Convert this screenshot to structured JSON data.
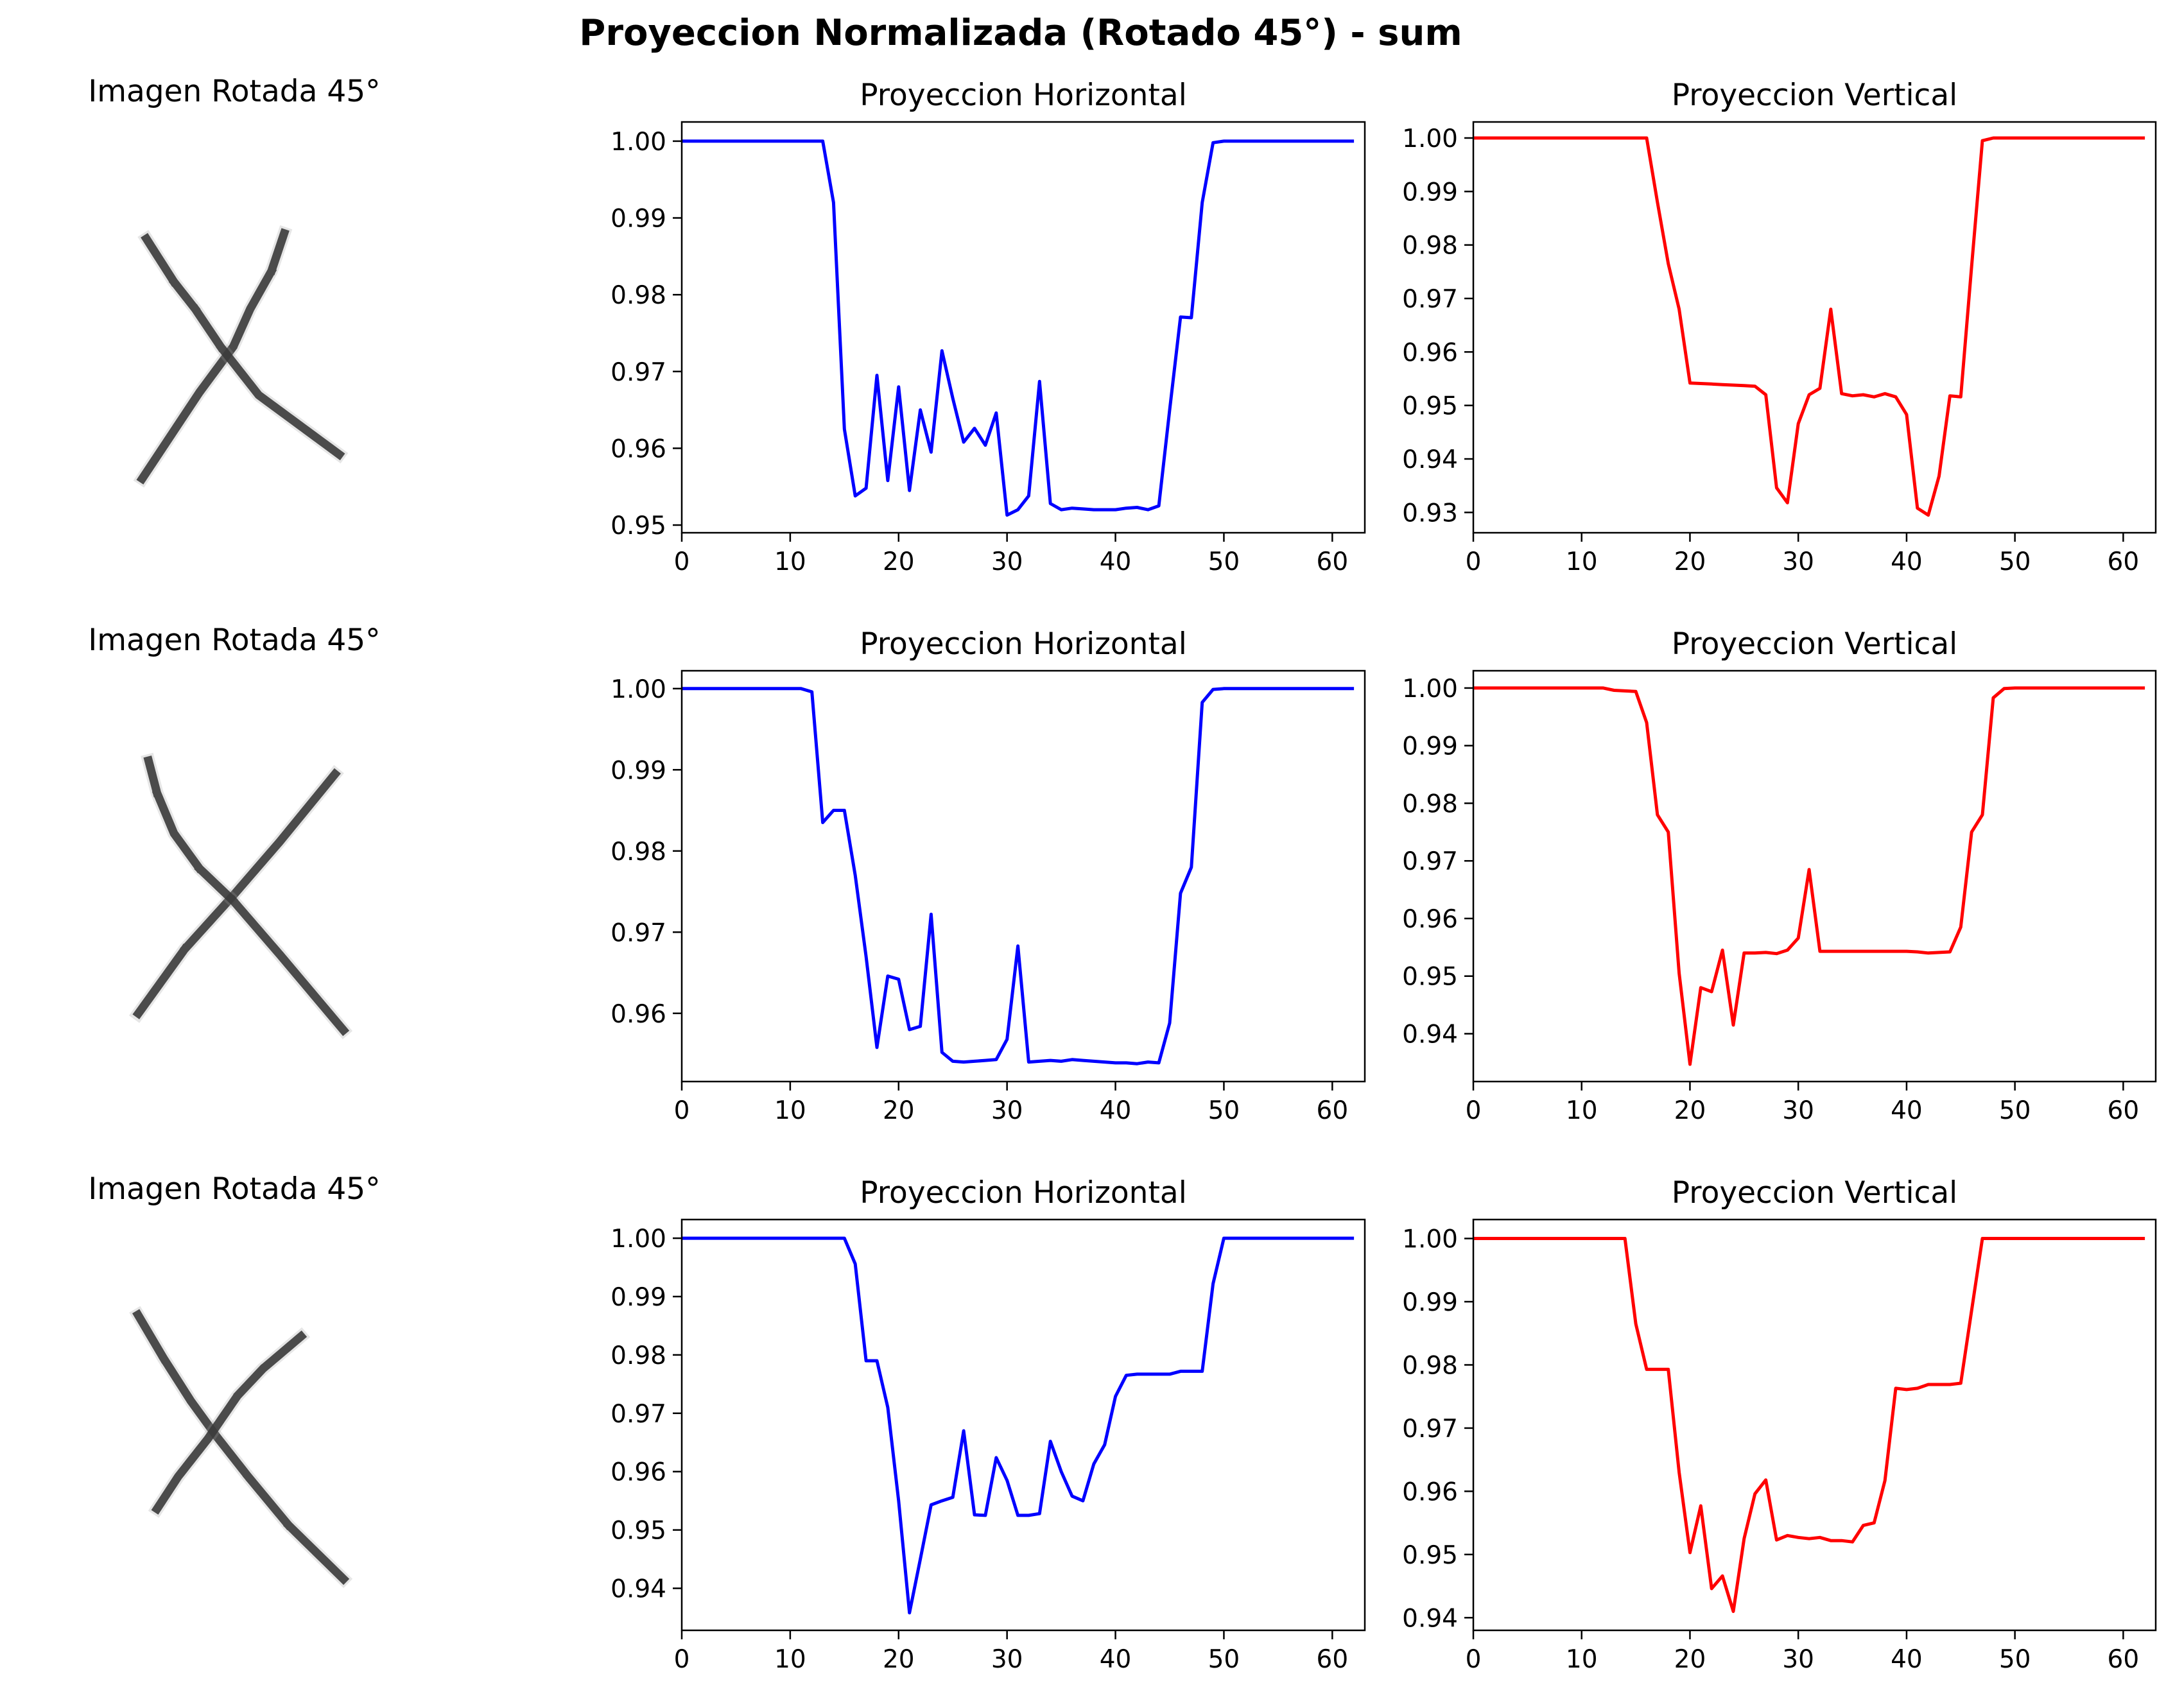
{
  "suptitle": "Proyeccion Normalizada (Rotado 45°) - sum",
  "colors": {
    "horizontal": "#0000ff",
    "vertical": "#ff0000"
  },
  "chart_data": [
    {
      "row": 0,
      "image": {
        "title": "Imagen Rotada 45°",
        "strokes": [
          [
            [
              0.72,
              0.08
            ],
            [
              0.66,
              0.22
            ],
            [
              0.56,
              0.36
            ],
            [
              0.48,
              0.5
            ],
            [
              0.32,
              0.67
            ],
            [
              0.05,
              0.99
            ]
          ],
          [
            [
              0.07,
              0.1
            ],
            [
              0.2,
              0.26
            ],
            [
              0.3,
              0.36
            ],
            [
              0.42,
              0.5
            ],
            [
              0.6,
              0.68
            ],
            [
              0.98,
              0.9
            ]
          ]
        ]
      },
      "charts": [
        {
          "type": "line",
          "title": "Proyeccion Horizontal",
          "color": "#0000ff",
          "xlim": [
            0,
            63
          ],
          "ylim": [
            0.949,
            1.0025
          ],
          "xticks": [
            0,
            10,
            20,
            30,
            40,
            50,
            60
          ],
          "yticks": [
            0.95,
            0.96,
            0.97,
            0.98,
            0.99,
            1.0
          ],
          "y": [
            1,
            1,
            1,
            1,
            1,
            1,
            1,
            1,
            1,
            1,
            1,
            1,
            1,
            1,
            0.992,
            0.9625,
            0.9538,
            0.9548,
            0.9695,
            0.9558,
            0.968,
            0.9545,
            0.965,
            0.9595,
            0.9727,
            0.9665,
            0.9608,
            0.9626,
            0.9604,
            0.9646,
            0.9513,
            0.952,
            0.9538,
            0.9687,
            0.9528,
            0.952,
            0.9522,
            0.9521,
            0.952,
            0.952,
            0.952,
            0.9522,
            0.9523,
            0.952,
            0.9525,
            0.965,
            0.9771,
            0.977,
            0.992,
            0.9998,
            1,
            1,
            1,
            1,
            1,
            1,
            1,
            1,
            1,
            1,
            1,
            1,
            1
          ]
        },
        {
          "type": "line",
          "title": "Proyeccion Vertical",
          "color": "#ff0000",
          "xlim": [
            0,
            63
          ],
          "ylim": [
            0.9262,
            1.003
          ],
          "xticks": [
            0,
            10,
            20,
            30,
            40,
            50,
            60
          ],
          "yticks": [
            0.93,
            0.94,
            0.95,
            0.96,
            0.97,
            0.98,
            0.99,
            1.0
          ],
          "y": [
            1,
            1,
            1,
            1,
            1,
            1,
            1,
            1,
            1,
            1,
            1,
            1,
            1,
            1,
            1,
            1,
            1,
            0.988,
            0.9765,
            0.968,
            0.9542,
            0.9541,
            0.954,
            0.9539,
            0.9538,
            0.9537,
            0.9536,
            0.952,
            0.9346,
            0.9318,
            0.9466,
            0.952,
            0.9532,
            0.968,
            0.9522,
            0.9518,
            0.952,
            0.9516,
            0.9522,
            0.9516,
            0.9483,
            0.9308,
            0.9295,
            0.9368,
            0.9518,
            0.9516,
            0.976,
            0.9995,
            1,
            1,
            1,
            1,
            1,
            1,
            1,
            1,
            1,
            1,
            1,
            1,
            1,
            1,
            1
          ]
        }
      ]
    },
    {
      "row": 1,
      "image": {
        "title": "Imagen Rotada 45°",
        "strokes": [
          [
            [
              0.96,
              0.05
            ],
            [
              0.7,
              0.3
            ],
            [
              0.48,
              0.5
            ],
            [
              0.25,
              0.7
            ],
            [
              0.03,
              0.94
            ]
          ],
          [
            [
              0.08,
              0.0
            ],
            [
              0.12,
              0.12
            ],
            [
              0.2,
              0.27
            ],
            [
              0.32,
              0.4
            ],
            [
              0.48,
              0.52
            ],
            [
              0.7,
              0.72
            ],
            [
              1.0,
              1.0
            ]
          ]
        ]
      },
      "charts": [
        {
          "type": "line",
          "title": "Proyeccion Horizontal",
          "color": "#0000ff",
          "xlim": [
            0,
            63
          ],
          "ylim": [
            0.9516,
            1.0022
          ],
          "xticks": [
            0,
            10,
            20,
            30,
            40,
            50,
            60
          ],
          "yticks": [
            0.96,
            0.97,
            0.98,
            0.99,
            1.0
          ],
          "y": [
            1,
            1,
            1,
            1,
            1,
            1,
            1,
            1,
            1,
            1,
            1,
            1,
            0.9996,
            0.9835,
            0.985,
            0.985,
            0.977,
            0.967,
            0.9558,
            0.9646,
            0.9642,
            0.958,
            0.9584,
            0.9722,
            0.9552,
            0.9541,
            0.954,
            0.9541,
            0.9542,
            0.9543,
            0.9568,
            0.9683,
            0.954,
            0.9541,
            0.9542,
            0.9541,
            0.9543,
            0.9542,
            0.9541,
            0.954,
            0.9539,
            0.9539,
            0.9538,
            0.954,
            0.9539,
            0.9588,
            0.9748,
            0.978,
            0.9983,
            0.9999,
            1,
            1,
            1,
            1,
            1,
            1,
            1,
            1,
            1,
            1,
            1,
            1,
            1
          ]
        },
        {
          "type": "line",
          "title": "Proyeccion Vertical",
          "color": "#ff0000",
          "xlim": [
            0,
            63
          ],
          "ylim": [
            0.9317,
            1.003
          ],
          "xticks": [
            0,
            10,
            20,
            30,
            40,
            50,
            60
          ],
          "yticks": [
            0.94,
            0.95,
            0.96,
            0.97,
            0.98,
            0.99,
            1.0
          ],
          "y": [
            1,
            1,
            1,
            1,
            1,
            1,
            1,
            1,
            1,
            1,
            1,
            1,
            1,
            0.9996,
            0.9995,
            0.9994,
            0.994,
            0.978,
            0.975,
            0.9505,
            0.9347,
            0.948,
            0.9473,
            0.9545,
            0.9415,
            0.954,
            0.954,
            0.9541,
            0.9539,
            0.9545,
            0.9566,
            0.9685,
            0.9543,
            0.9543,
            0.9543,
            0.9543,
            0.9543,
            0.9543,
            0.9543,
            0.9543,
            0.9543,
            0.9542,
            0.954,
            0.9541,
            0.9542,
            0.9585,
            0.975,
            0.978,
            0.9983,
            0.9999,
            1,
            1,
            1,
            1,
            1,
            1,
            1,
            1,
            1,
            1,
            1,
            1,
            1
          ]
        }
      ]
    },
    {
      "row": 2,
      "image": {
        "title": "Imagen Rotada 45°",
        "strokes": [
          [
            [
              0.03,
              0.02
            ],
            [
              0.15,
              0.18
            ],
            [
              0.28,
              0.34
            ],
            [
              0.4,
              0.47
            ],
            [
              0.55,
              0.62
            ],
            [
              0.74,
              0.8
            ],
            [
              1.0,
              1.0
            ]
          ],
          [
            [
              0.8,
              0.1
            ],
            [
              0.62,
              0.22
            ],
            [
              0.5,
              0.32
            ],
            [
              0.36,
              0.48
            ],
            [
              0.22,
              0.62
            ],
            [
              0.12,
              0.74
            ]
          ]
        ]
      },
      "charts": [
        {
          "type": "line",
          "title": "Proyeccion Horizontal",
          "color": "#0000ff",
          "xlim": [
            0,
            63
          ],
          "ylim": [
            0.9328,
            1.0032
          ],
          "xticks": [
            0,
            10,
            20,
            30,
            40,
            50,
            60
          ],
          "yticks": [
            0.94,
            0.95,
            0.96,
            0.97,
            0.98,
            0.99,
            1.0
          ],
          "y": [
            1,
            1,
            1,
            1,
            1,
            1,
            1,
            1,
            1,
            1,
            1,
            1,
            1,
            1,
            1,
            1,
            0.9956,
            0.979,
            0.979,
            0.971,
            0.955,
            0.9358,
            0.945,
            0.9543,
            0.955,
            0.9556,
            0.967,
            0.9526,
            0.9525,
            0.9624,
            0.9585,
            0.9525,
            0.9525,
            0.9528,
            0.9652,
            0.96,
            0.9558,
            0.955,
            0.9613,
            0.9646,
            0.9729,
            0.9765,
            0.9767,
            0.9767,
            0.9767,
            0.9767,
            0.9772,
            0.9772,
            0.9772,
            0.9922,
            1,
            1,
            1,
            1,
            1,
            1,
            1,
            1,
            1,
            1,
            1,
            1,
            1
          ]
        },
        {
          "type": "line",
          "title": "Proyeccion Vertical",
          "color": "#ff0000",
          "xlim": [
            0,
            63
          ],
          "ylim": [
            0.938,
            1.003
          ],
          "xticks": [
            0,
            10,
            20,
            30,
            40,
            50,
            60
          ],
          "yticks": [
            0.94,
            0.95,
            0.96,
            0.97,
            0.98,
            0.99,
            1.0
          ],
          "y": [
            1,
            1,
            1,
            1,
            1,
            1,
            1,
            1,
            1,
            1,
            1,
            1,
            1,
            1,
            1,
            0.9865,
            0.9793,
            0.9793,
            0.9793,
            0.963,
            0.9503,
            0.9577,
            0.9446,
            0.9466,
            0.941,
            0.9525,
            0.9596,
            0.9618,
            0.9523,
            0.953,
            0.9527,
            0.9525,
            0.9527,
            0.9522,
            0.9522,
            0.952,
            0.9546,
            0.955,
            0.9617,
            0.9763,
            0.9761,
            0.9763,
            0.9769,
            0.9769,
            0.9769,
            0.9771,
            0.9886,
            1,
            1,
            1,
            1,
            1,
            1,
            1,
            1,
            1,
            1,
            1,
            1,
            1,
            1,
            1,
            1
          ]
        }
      ]
    }
  ]
}
